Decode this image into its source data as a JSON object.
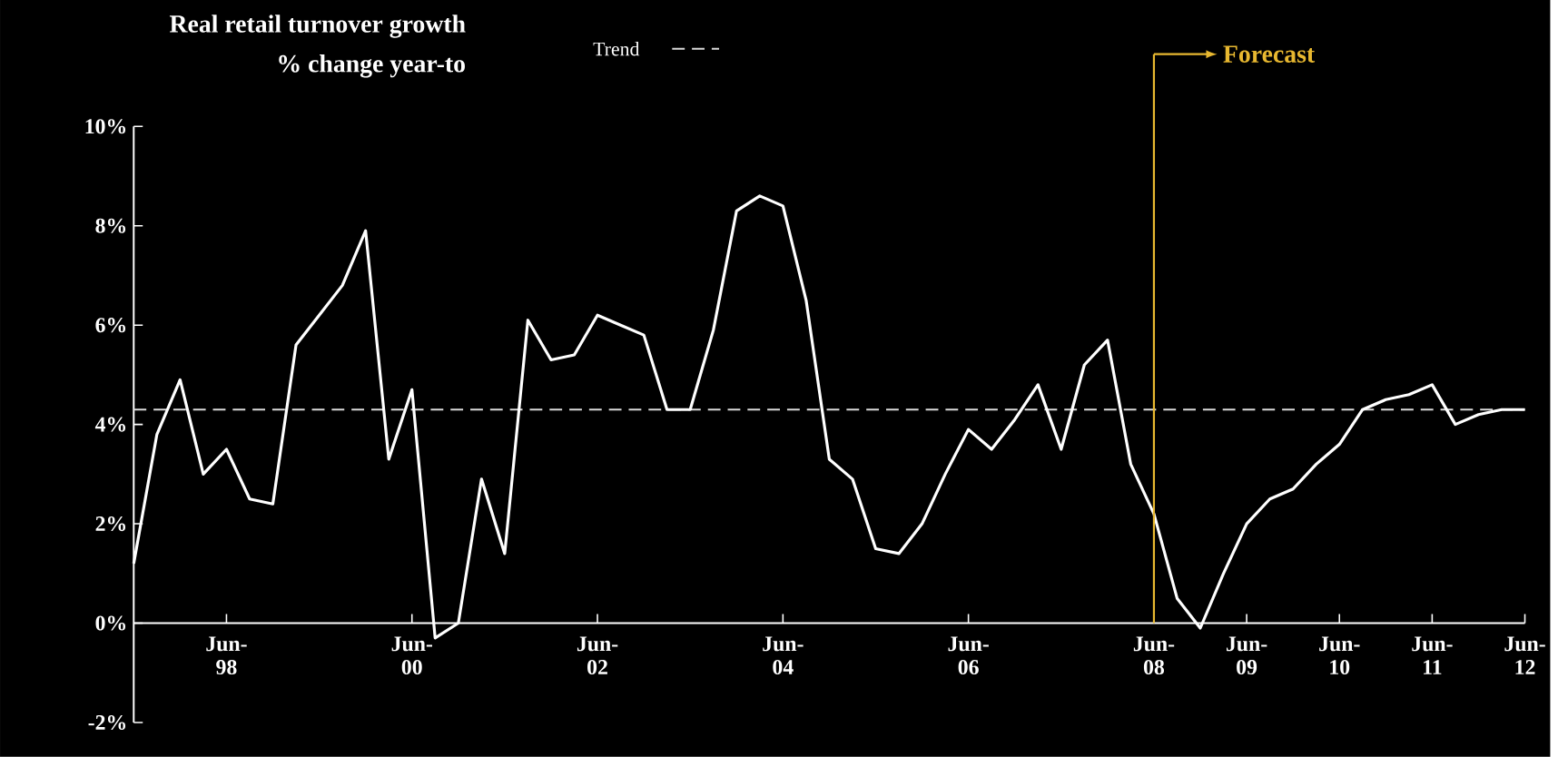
{
  "chart_data": {
    "type": "line",
    "title": "Real retail turnover growth",
    "subtitle": "% change year-to",
    "categories": [
      null,
      null,
      null,
      null,
      "Jun-98",
      null,
      null,
      null,
      null,
      null,
      null,
      null,
      "Jun-00",
      null,
      null,
      null,
      null,
      null,
      null,
      null,
      "Jun-02",
      null,
      null,
      null,
      null,
      null,
      null,
      null,
      "Jun-04",
      null,
      null,
      null,
      null,
      null,
      null,
      null,
      "Jun-06",
      null,
      null,
      null,
      null,
      null,
      null,
      null,
      "Jun-08",
      null,
      null,
      null,
      "Jun-09",
      null,
      null,
      null,
      "Jun-10",
      null,
      null,
      null,
      "Jun-11",
      null,
      null,
      null,
      "Jun-12"
    ],
    "series": [
      {
        "color": "#ffffff",
        "values": [
          1.2,
          3.8,
          4.9,
          3.0,
          3.5,
          2.5,
          2.4,
          5.6,
          6.2,
          6.8,
          7.9,
          3.3,
          4.7,
          -0.3,
          0.0,
          2.9,
          1.4,
          6.1,
          5.3,
          5.4,
          6.2,
          6.0,
          5.8,
          4.3,
          4.3,
          5.9,
          8.3,
          8.6,
          8.4,
          6.5,
          3.3,
          2.9,
          1.5,
          1.4,
          2.0,
          3.0,
          3.9,
          3.5,
          4.1,
          4.8,
          3.5,
          5.2,
          5.7,
          3.2,
          2.2,
          0.5,
          -0.1,
          1.0,
          2.0,
          2.5,
          2.7,
          3.2,
          3.6,
          4.3,
          4.5,
          4.6,
          4.8,
          4.0,
          4.2,
          4.3,
          4.3
        ]
      }
    ],
    "ylim": [
      -2,
      10
    ],
    "yticks": [
      {
        "value": -2,
        "label": "-2%"
      },
      {
        "value": 0,
        "label": "0%"
      },
      {
        "value": 2,
        "label": "2%"
      },
      {
        "value": 4,
        "label": "4%"
      },
      {
        "value": 6,
        "label": "6%"
      },
      {
        "value": 8,
        "label": "8%"
      },
      {
        "value": 10,
        "label": "10%"
      }
    ],
    "ref_lines": [
      {
        "axis": "y",
        "value": 4.3,
        "label": "Trend",
        "color": "#d9d9d9",
        "line_style": "dashed"
      },
      {
        "axis": "x",
        "value": "Jun-08",
        "label": "Forecast",
        "color": "#e8b830",
        "line_style": "solid"
      }
    ],
    "legend": "top",
    "grid": false,
    "marker": "none",
    "line_style": "solid"
  }
}
